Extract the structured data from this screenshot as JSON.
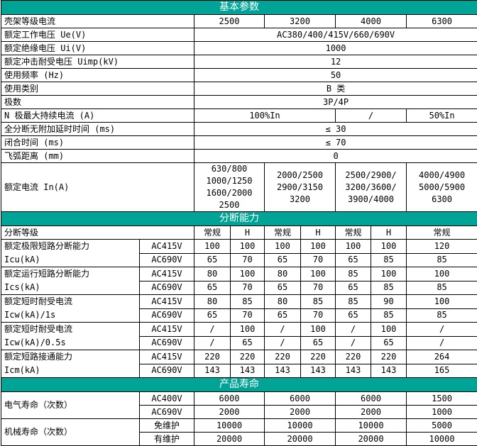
{
  "colors": {
    "section_header_bg": "#00a496",
    "section_header_text": "#ffffff",
    "border": "#000000"
  },
  "basic": {
    "title": "基本参数",
    "frame_current": {
      "label": "壳架等级电流",
      "values": [
        "2500",
        "3200",
        "4000",
        "6300"
      ]
    },
    "rated_voltage": {
      "label": "额定工作电压 Ue(V)",
      "value": "AC380/400/415V/660/690V"
    },
    "insulation_voltage": {
      "label": "额定绝缘电压 Ui(V)",
      "value": "1000"
    },
    "impulse_voltage": {
      "label": "额定冲击耐受电压 Uimp(kV)",
      "value": "12"
    },
    "frequency": {
      "label": "使用频率 (Hz)",
      "value": "50"
    },
    "category": {
      "label": "使用类别",
      "value": "B 类"
    },
    "poles": {
      "label": "极数",
      "value": "3P/4P"
    },
    "n_pole_current": {
      "label": "N 极最大持续电流 (A)",
      "values": [
        "100%In",
        "/",
        "50%In"
      ]
    },
    "break_time": {
      "label": "全分断无附加延时时间 (ms)",
      "value": "≤ 30"
    },
    "close_time": {
      "label": "闭合时间 (ms)",
      "value": "≤ 70"
    },
    "arc_distance": {
      "label": "飞弧距离 (mm)",
      "value": "0"
    },
    "rated_current": {
      "label": "额定电流 In(A)",
      "values": [
        "630/800\n1000/1250\n1600/2000\n2500",
        "2000/2500\n2900/3150\n3200",
        "2500/2900/\n3200/3600/\n3900/4000",
        "4000/4900\n5000/5900\n6300"
      ]
    }
  },
  "breaking": {
    "title": "分断能力",
    "grade": {
      "label": "分断等级",
      "values": [
        "常规",
        "H",
        "常规",
        "H",
        "常规",
        "H",
        "常规"
      ]
    },
    "groups": [
      {
        "label": "额定极限短路分断能力\nIcu(kA)",
        "rows": [
          {
            "voltage": "AC415V",
            "values": [
              "100",
              "100",
              "100",
              "100",
              "100",
              "100",
              "120"
            ]
          },
          {
            "voltage": "AC690V",
            "values": [
              "65",
              "70",
              "65",
              "70",
              "65",
              "85",
              "85"
            ]
          }
        ]
      },
      {
        "label": "额定运行短路分断能力\nIcs(kA)",
        "rows": [
          {
            "voltage": "AC415V",
            "values": [
              "80",
              "100",
              "80",
              "100",
              "85",
              "100",
              "100"
            ]
          },
          {
            "voltage": "AC690V",
            "values": [
              "65",
              "70",
              "65",
              "70",
              "65",
              "85",
              "85"
            ]
          }
        ]
      },
      {
        "label": "额定短时耐受电流\nIcw(kA)/1s",
        "rows": [
          {
            "voltage": "AC415V",
            "values": [
              "80",
              "85",
              "80",
              "85",
              "85",
              "90",
              "100"
            ]
          },
          {
            "voltage": "AC690V",
            "values": [
              "65",
              "70",
              "65",
              "70",
              "65",
              "85",
              "85"
            ]
          }
        ]
      },
      {
        "label": "额定短时耐受电流\nIcw(kA)/0.5s",
        "rows": [
          {
            "voltage": "AC415V",
            "values": [
              "/",
              "100",
              "/",
              "100",
              "/",
              "100",
              "/"
            ]
          },
          {
            "voltage": "AC690V",
            "values": [
              "/",
              "65",
              "/",
              "65",
              "/",
              "65",
              "/"
            ]
          }
        ]
      },
      {
        "label": "额定短路接通能力\nIcm(kA)",
        "rows": [
          {
            "voltage": "AC415V",
            "values": [
              "220",
              "220",
              "220",
              "220",
              "220",
              "220",
              "264"
            ]
          },
          {
            "voltage": "AC690V",
            "values": [
              "143",
              "143",
              "143",
              "143",
              "143",
              "143",
              "165"
            ]
          }
        ]
      }
    ]
  },
  "life": {
    "title": "产品寿命",
    "groups": [
      {
        "label": "电气寿命（次数）",
        "rows": [
          {
            "condition": "AC400V",
            "values": [
              "6000",
              "6000",
              "6000",
              "1500"
            ]
          },
          {
            "condition": "AC690V",
            "values": [
              "2000",
              "2000",
              "2000",
              "1000"
            ]
          }
        ]
      },
      {
        "label": "机械寿命（次数）",
        "rows": [
          {
            "condition": "免维护",
            "values": [
              "10000",
              "10000",
              "10000",
              "5000"
            ]
          },
          {
            "condition": "有维护",
            "values": [
              "20000",
              "20000",
              "20000",
              "10000"
            ]
          }
        ]
      }
    ]
  }
}
